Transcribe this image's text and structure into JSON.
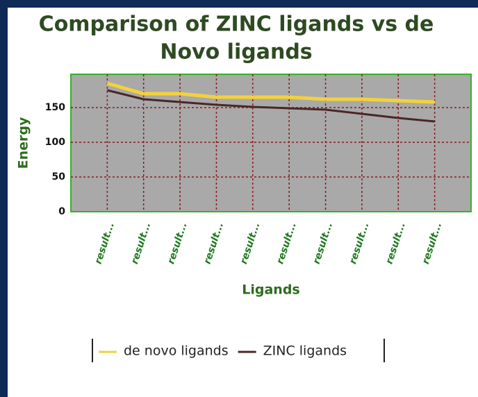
{
  "chart_data": {
    "type": "line",
    "title": "Comparison of ZINC ligands vs de",
    "title_line2": "Novo ligands",
    "x_label": "Ligands",
    "y_label": "Energy",
    "categories": [
      "result...",
      "result...",
      "result...",
      "result...",
      "result...",
      "result...",
      "result...",
      "result...",
      "result...",
      "result..."
    ],
    "series": [
      {
        "name": "de novo ligands",
        "color": "#f2d23a",
        "values": [
          185,
          170,
          170,
          165,
          165,
          165,
          162,
          162,
          160,
          158
        ]
      },
      {
        "name": "ZINC ligands",
        "color": "#4a2626",
        "values": [
          175,
          162,
          158,
          154,
          151,
          149,
          147,
          141,
          135,
          130
        ]
      }
    ],
    "ylim": [
      0,
      198
    ],
    "yticks": [
      0,
      50,
      100,
      150
    ],
    "grid": true
  }
}
